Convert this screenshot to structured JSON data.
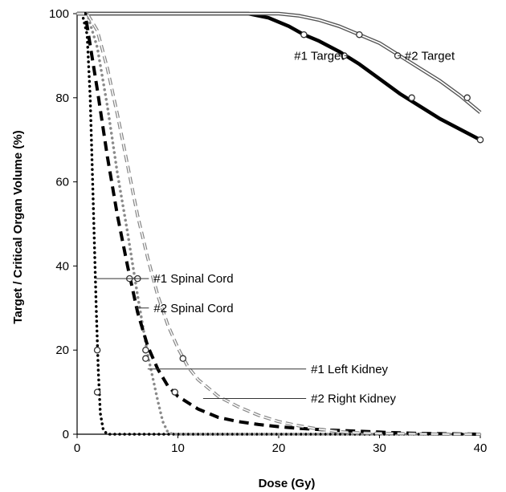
{
  "chart_data": {
    "type": "line",
    "xlabel": "Dose (Gy)",
    "ylabel": "Target / Critical Organ Volume (%)",
    "xlim": [
      0,
      40
    ],
    "ylim": [
      0,
      100
    ],
    "xticks": [
      "0",
      "10",
      "20",
      "30",
      "40"
    ],
    "yticks": [
      "0",
      "20",
      "40",
      "60",
      "80",
      "100"
    ],
    "grid": false,
    "legend": "none",
    "series": [
      {
        "name": "#1 Target",
        "style": "solid-thick",
        "color": "#000000",
        "x": [
          0,
          17,
          19,
          21,
          22.5,
          24,
          26,
          28,
          30,
          32,
          34,
          36,
          38,
          40
        ],
        "y": [
          100,
          100,
          99,
          97,
          95,
          93.5,
          91,
          88,
          84.5,
          81,
          78,
          75,
          72.5,
          70
        ],
        "markers": [
          [
            22.5,
            95
          ],
          [
            26.5,
            90
          ],
          [
            33.2,
            80
          ],
          [
            40,
            70
          ]
        ]
      },
      {
        "name": "#2 Target",
        "style": "double",
        "color": "#555555",
        "x": [
          0,
          20,
          22,
          24,
          26,
          28,
          30,
          32,
          34,
          36,
          38,
          40
        ],
        "y": [
          100,
          100,
          99.5,
          98.5,
          97,
          95,
          93,
          90,
          87,
          84,
          80.5,
          76.5
        ],
        "markers": [
          [
            28,
            95
          ],
          [
            31.8,
            90
          ],
          [
            38.7,
            80
          ]
        ]
      },
      {
        "name": "#1 Spinal Cord",
        "style": "dotted-black",
        "color": "#000000",
        "x": [
          0,
          0.5,
          1,
          1.3,
          1.6,
          1.9,
          2.1,
          2.3,
          2.6,
          3,
          40
        ],
        "y": [
          100,
          100,
          95,
          80,
          55,
          30,
          15,
          5,
          1,
          0,
          0
        ],
        "markers": [
          [
            2.0,
            20
          ],
          [
            2.0,
            10
          ]
        ]
      },
      {
        "name": "#2 Spinal Cord",
        "style": "dotted-gray",
        "color": "#8a8a8a",
        "x": [
          0,
          1,
          2,
          3,
          4,
          5,
          6,
          7,
          8,
          8.5,
          9,
          9.5,
          40
        ],
        "y": [
          100,
          100,
          92,
          78,
          62,
          48,
          33,
          19,
          8,
          3,
          0.5,
          0,
          0
        ],
        "markers": [
          [
            6,
            37
          ],
          [
            6.8,
            20
          ]
        ]
      },
      {
        "name": "#1 Left Kidney",
        "style": "dashed-black",
        "color": "#000000",
        "x": [
          0,
          0.8,
          2,
          3,
          4,
          5,
          6,
          7,
          8,
          9,
          10,
          12,
          14,
          16,
          18,
          20,
          22,
          25,
          28,
          31,
          34,
          37,
          40
        ],
        "y": [
          100,
          100,
          82,
          66,
          52,
          40,
          29,
          21,
          15.5,
          11.5,
          9,
          6,
          4,
          3,
          2.3,
          1.8,
          1.4,
          1,
          0.7,
          0.4,
          0.2,
          0.1,
          0
        ],
        "markers": [
          [
            5.2,
            37
          ],
          [
            6.8,
            18
          ],
          [
            9.7,
            10
          ]
        ]
      },
      {
        "name": "#2 Right Kidney",
        "style": "dashed-double",
        "color": "#888888",
        "x": [
          0,
          1,
          2,
          3,
          4,
          5,
          6,
          7,
          8,
          9,
          10,
          11,
          12,
          14,
          16,
          18,
          20,
          22,
          24,
          26,
          28,
          30,
          33,
          37,
          40
        ],
        "y": [
          100,
          100,
          96,
          87,
          76,
          64,
          52,
          42,
          33,
          26,
          20.5,
          16,
          13,
          9,
          6.5,
          4.5,
          3,
          2,
          1.2,
          0.6,
          0.3,
          0.2,
          0.1,
          0,
          0
        ],
        "markers": [
          [
            10.5,
            18
          ]
        ]
      }
    ],
    "annotations": [
      {
        "label": "#1 Target",
        "text_x": 26.5,
        "text_y": 90,
        "anchor": "end",
        "lead_to": [
          26.5,
          90
        ]
      },
      {
        "label": "#2 Target",
        "text_x": 32.5,
        "text_y": 90,
        "anchor": "start",
        "lead_to": [
          31.8,
          90
        ]
      },
      {
        "label": "#1 Spinal Cord",
        "text_x": 7.6,
        "text_y": 37,
        "anchor": "start",
        "lead_to": [
          1.9,
          37
        ]
      },
      {
        "label": "#2 Spinal Cord",
        "text_x": 7.6,
        "text_y": 30,
        "anchor": "start",
        "lead_to": [
          5.8,
          30
        ]
      },
      {
        "label": "#1 Left Kidney",
        "text_x": 23.2,
        "text_y": 15.5,
        "anchor": "start",
        "lead_to": [
          7.0,
          15.5
        ]
      },
      {
        "label": "#2 Right Kidney",
        "text_x": 23.2,
        "text_y": 8.5,
        "anchor": "start",
        "lead_to": [
          12.5,
          8.5
        ]
      }
    ]
  }
}
